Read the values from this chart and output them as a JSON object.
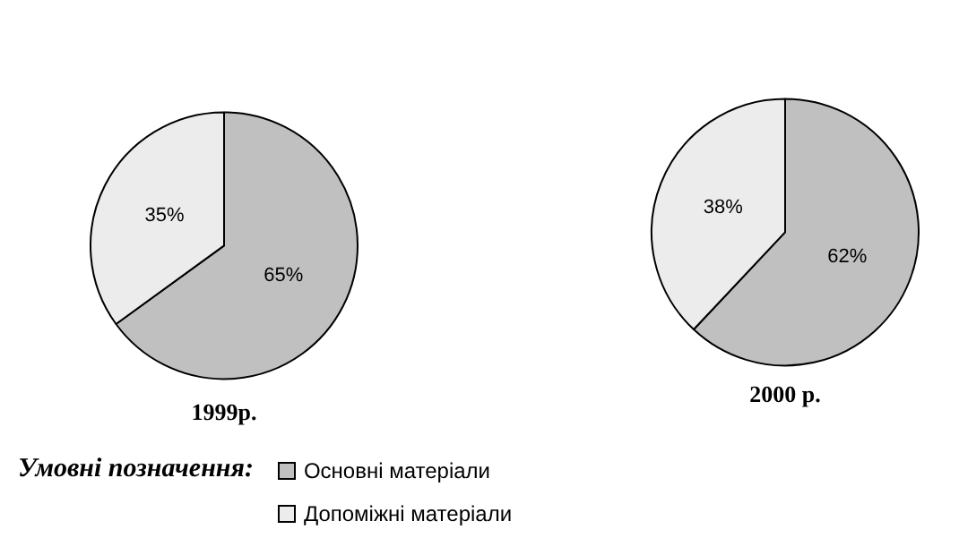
{
  "chart_data": [
    {
      "type": "pie",
      "title": "1999р.",
      "categories": [
        "Основні матеріали",
        "Допоміжні матеріали"
      ],
      "values": [
        65,
        35
      ],
      "value_labels": [
        "65%",
        "35%"
      ],
      "colors": [
        "#c0c0c0",
        "#ececec"
      ],
      "legend": "bottom",
      "legend_title": "Умовні позначення:"
    },
    {
      "type": "pie",
      "title": "2000 р.",
      "categories": [
        null,
        null
      ],
      "values": [
        62,
        38
      ],
      "value_labels": [
        "62%",
        "38%"
      ],
      "colors": [
        "#c0c0c0",
        "#ececec"
      ]
    }
  ]
}
